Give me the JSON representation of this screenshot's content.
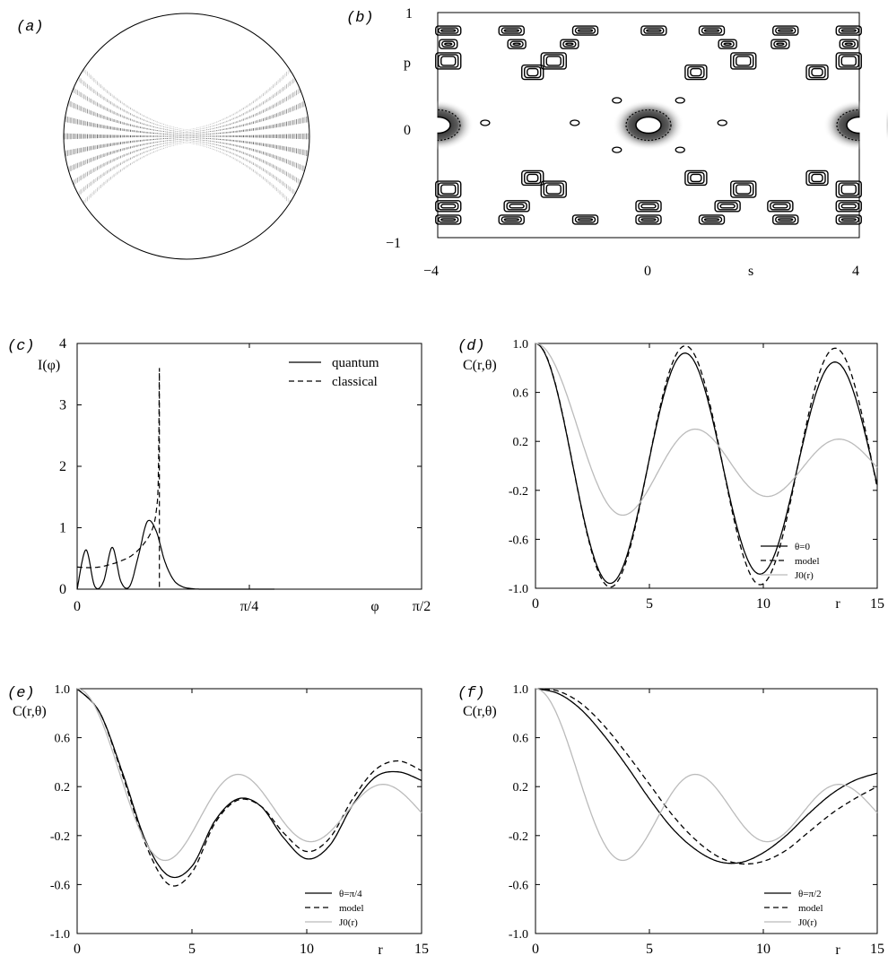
{
  "panel_labels": {
    "a": "(a)",
    "b": "(b)",
    "c": "(c)",
    "d": "(d)",
    "e": "(e)",
    "f": "(f)"
  },
  "chart_data": [
    {
      "id": "a",
      "type": "heatmap",
      "description_shown": "circular billiard wavefunction intensity"
    },
    {
      "id": "b",
      "type": "heatmap",
      "xlabel": "s",
      "ylabel": "p",
      "xlim": [
        -4,
        4
      ],
      "ylim": [
        -1,
        1
      ],
      "xticks": [
        "−4",
        "0",
        "4"
      ],
      "yticks": [
        "−1",
        "0",
        "1"
      ]
    },
    {
      "id": "c",
      "type": "line",
      "xlabel": "φ",
      "ylabel": "I(φ)",
      "xlim": [
        0,
        1.5708
      ],
      "ylim": [
        0,
        4
      ],
      "xticks": [
        "0",
        "π/4",
        "π/2"
      ],
      "yticks": [
        "0",
        "1",
        "2",
        "3",
        "4"
      ],
      "legend": "top-right",
      "series": [
        {
          "name": "quantum",
          "style": "solid",
          "x": [
            0,
            0.04,
            0.08,
            0.12,
            0.16,
            0.2,
            0.24,
            0.28,
            0.32,
            0.36,
            0.4,
            0.44,
            0.48,
            0.52,
            0.56,
            0.6,
            0.64,
            0.68,
            0.72,
            0.8,
            0.9
          ],
          "y": [
            0,
            0.64,
            0.05,
            0.12,
            0.68,
            0.12,
            0.05,
            0.55,
            1.1,
            0.95,
            0.45,
            0.15,
            0.04,
            0.01,
            0,
            0,
            0,
            0,
            0,
            0,
            0
          ]
        },
        {
          "name": "classical",
          "style": "dashed",
          "x": [
            0,
            0.05,
            0.1,
            0.15,
            0.2,
            0.25,
            0.3,
            0.34,
            0.36,
            0.37,
            0.375
          ],
          "y": [
            0.36,
            0.35,
            0.36,
            0.4,
            0.46,
            0.55,
            0.72,
            0.95,
            1.25,
            1.8,
            3.6
          ]
        }
      ]
    },
    {
      "id": "d",
      "type": "line",
      "xlabel": "r",
      "ylabel": "C(r,θ)",
      "xlim": [
        0,
        15
      ],
      "ylim": [
        -1,
        1
      ],
      "xticks": [
        "0",
        "5",
        "10",
        "15"
      ],
      "yticks": [
        "1.0",
        "0.6",
        "0.2",
        "-0.2",
        "-0.6",
        "-1.0"
      ],
      "legend": "bottom-right",
      "series": [
        {
          "name": "θ=0",
          "style": "solid",
          "color": "#000000",
          "curve": "cos",
          "k": 0.955,
          "amp": 1.0,
          "decay": 0.0125
        },
        {
          "name": "model",
          "style": "dashed",
          "color": "#000000",
          "curve": "cos",
          "k": 0.955,
          "amp": 1.0,
          "decay": 0.003
        },
        {
          "name": "J0(r)",
          "style": "solid",
          "color": "#bbbbbb",
          "curve": "j0"
        }
      ]
    },
    {
      "id": "e",
      "type": "line",
      "xlabel": "r",
      "ylabel": "C(r,θ)",
      "xlim": [
        0,
        15
      ],
      "ylim": [
        -1,
        1
      ],
      "xticks": [
        "0",
        "5",
        "10",
        "15"
      ],
      "yticks": [
        "1.0",
        "0.6",
        "0.2",
        "-0.2",
        "-0.6",
        "-1.0"
      ],
      "legend": "bottom-right",
      "series": [
        {
          "name": "θ=π/4",
          "style": "solid",
          "color": "#000000",
          "curve": "pts",
          "x": [
            0,
            1,
            2,
            3,
            4,
            5,
            6,
            7,
            8,
            9,
            10,
            11,
            12,
            13,
            14,
            15
          ],
          "y": [
            1.0,
            0.8,
            0.3,
            -0.25,
            -0.53,
            -0.45,
            -0.08,
            0.1,
            0.04,
            -0.22,
            -0.39,
            -0.28,
            0.05,
            0.28,
            0.32,
            0.25
          ]
        },
        {
          "name": "model",
          "style": "dashed",
          "color": "#000000",
          "curve": "pts",
          "x": [
            0,
            1,
            2,
            3,
            4,
            5,
            6,
            7,
            8,
            9,
            10,
            11,
            12,
            13,
            14,
            15
          ],
          "y": [
            1.0,
            0.8,
            0.28,
            -0.28,
            -0.6,
            -0.5,
            -0.1,
            0.09,
            0.04,
            -0.18,
            -0.33,
            -0.22,
            0.1,
            0.34,
            0.41,
            0.33
          ]
        },
        {
          "name": "J0(r)",
          "style": "solid",
          "color": "#bbbbbb",
          "curve": "j0"
        }
      ]
    },
    {
      "id": "f",
      "type": "line",
      "xlabel": "r",
      "ylabel": "C(r,θ)",
      "xlim": [
        0,
        15
      ],
      "ylim": [
        -1,
        1
      ],
      "xticks": [
        "0",
        "5",
        "10",
        "15"
      ],
      "yticks": [
        "1.0",
        "0.6",
        "0.2",
        "-0.2",
        "-0.6",
        "-1.0"
      ],
      "legend": "bottom-right",
      "series": [
        {
          "name": "θ=π/2",
          "style": "solid",
          "color": "#000000",
          "curve": "pts",
          "x": [
            0,
            1,
            2,
            3,
            4,
            5,
            6,
            7,
            8,
            9,
            10,
            11,
            12,
            13,
            14,
            15
          ],
          "y": [
            1.0,
            0.96,
            0.83,
            0.62,
            0.37,
            0.1,
            -0.14,
            -0.31,
            -0.41,
            -0.42,
            -0.34,
            -0.2,
            -0.02,
            0.14,
            0.25,
            0.31
          ]
        },
        {
          "name": "model",
          "style": "dashed",
          "color": "#000000",
          "curve": "pts",
          "x": [
            0,
            1,
            2,
            3,
            4,
            5,
            6,
            7,
            8,
            9,
            10,
            11,
            12,
            13,
            14,
            15
          ],
          "y": [
            1.0,
            0.98,
            0.88,
            0.7,
            0.47,
            0.22,
            -0.03,
            -0.23,
            -0.37,
            -0.43,
            -0.41,
            -0.32,
            -0.17,
            -0.02,
            0.1,
            0.2
          ]
        },
        {
          "name": "J0(r)",
          "style": "solid",
          "color": "#bbbbbb",
          "curve": "j0"
        }
      ]
    }
  ]
}
